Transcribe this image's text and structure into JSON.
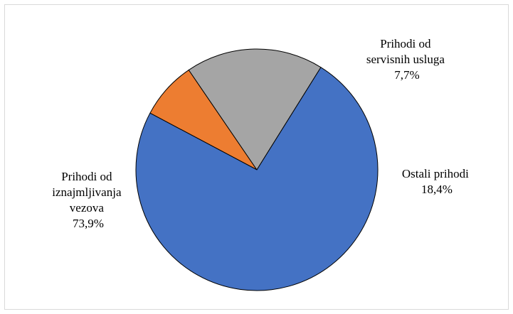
{
  "chart_data": {
    "type": "pie",
    "title": "",
    "slices": [
      {
        "label_lines": [
          "Prihodi od",
          "servisnih usluga"
        ],
        "percent_label": "7,7%",
        "value": 7.7,
        "color": "#ED7D31"
      },
      {
        "label_lines": [
          "Ostali prihodi"
        ],
        "percent_label": "18,4%",
        "value": 18.4,
        "color": "#A5A5A5"
      },
      {
        "label_lines": [
          "Prihodi od",
          "iznajmljivanja",
          "vezova"
        ],
        "percent_label": "73,9%",
        "value": 73.9,
        "color": "#4472C4"
      }
    ],
    "legend": "none"
  }
}
